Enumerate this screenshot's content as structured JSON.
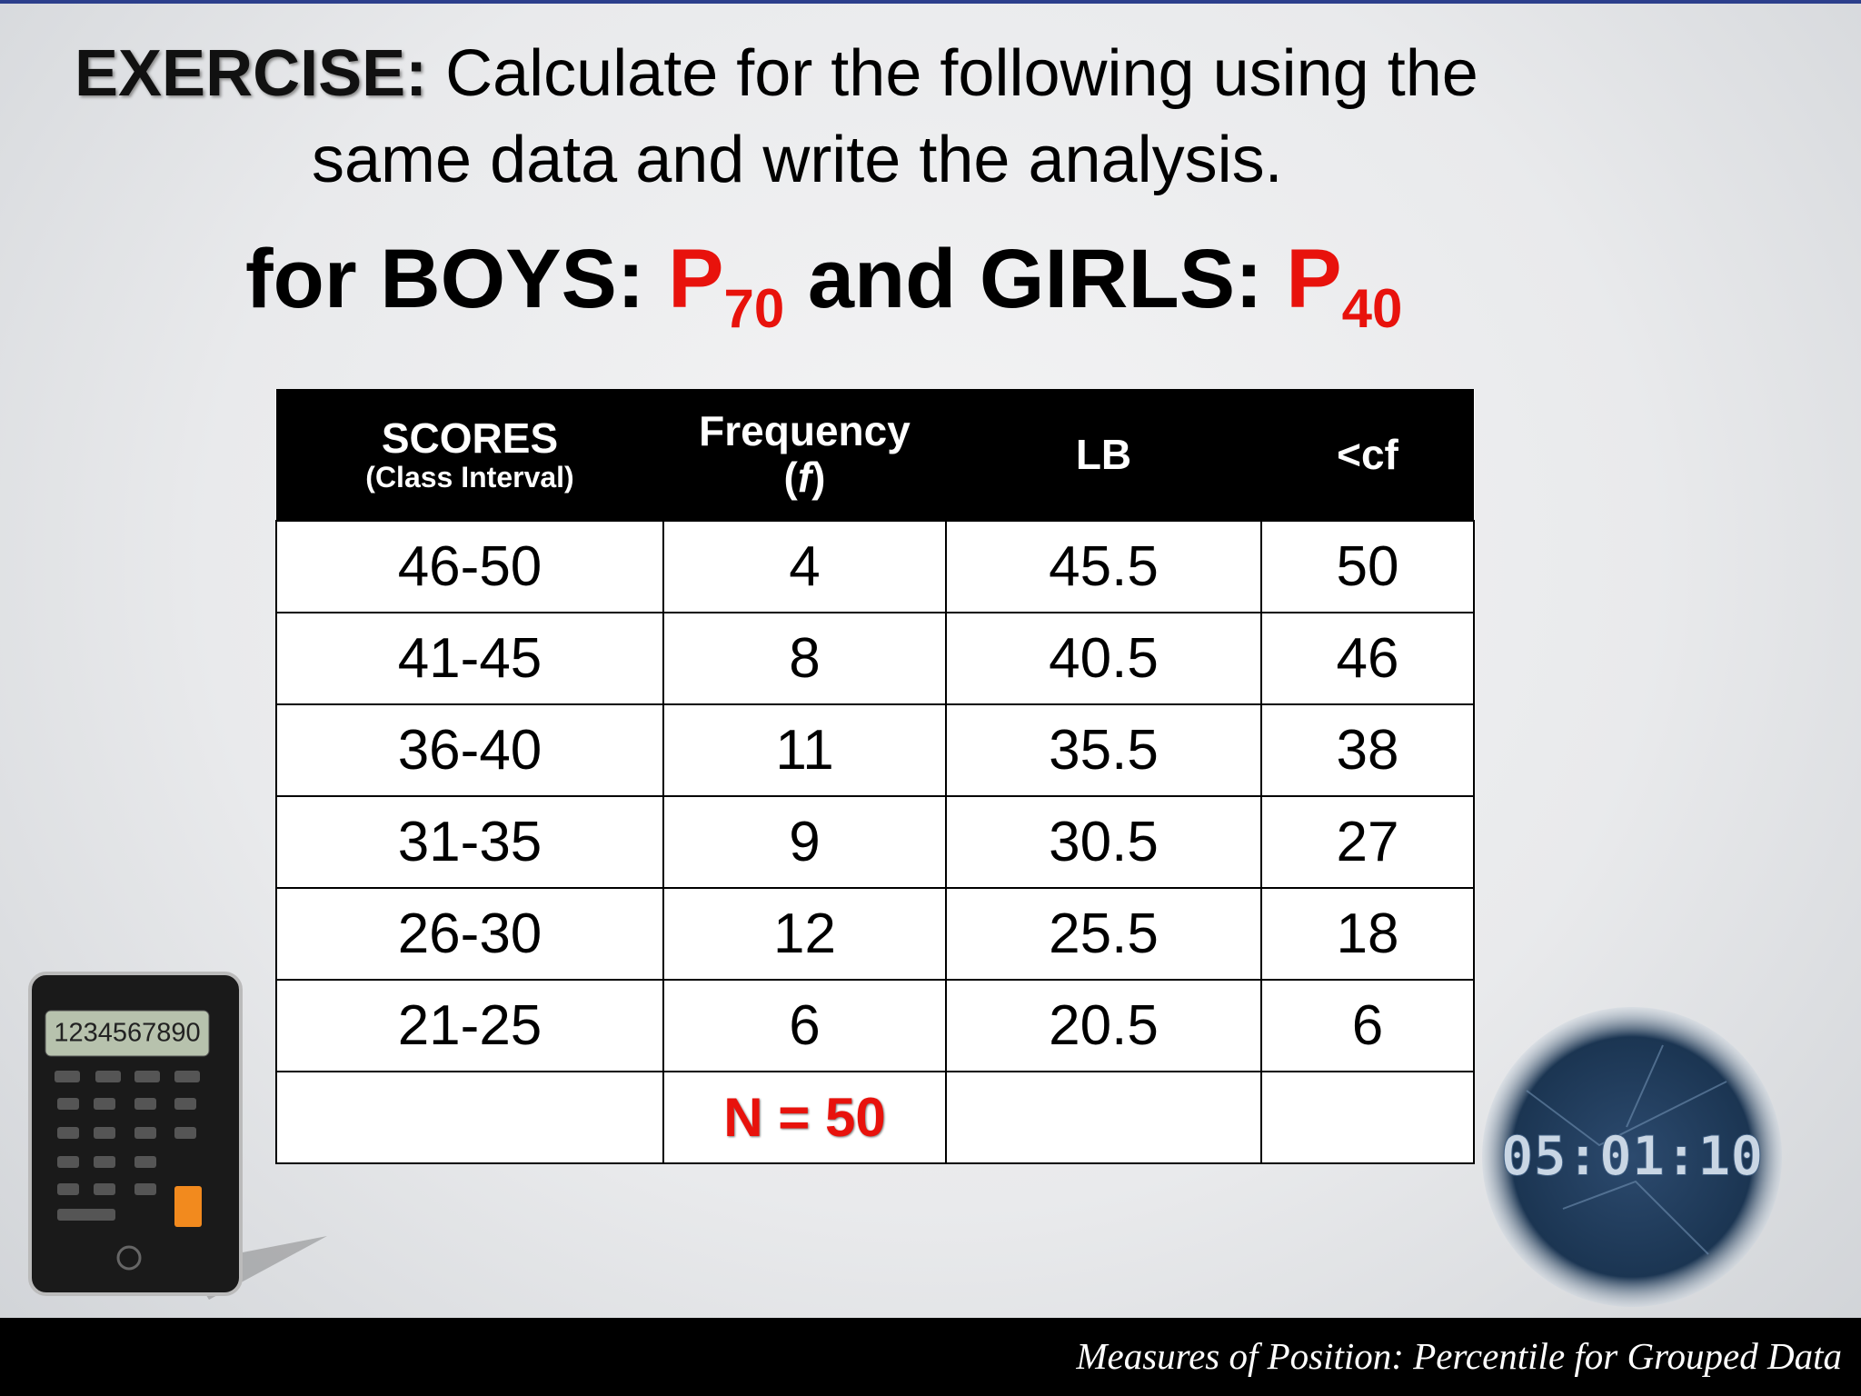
{
  "header": {
    "label": "EXERCISE:",
    "text_line1": "Calculate for the following using the",
    "text_line2": "same data and write the analysis."
  },
  "task": {
    "boys_label": "for BOYS:",
    "boys_symbol": "P",
    "boys_sub": "70",
    "girls_label": "and GIRLS:",
    "girls_symbol": "P",
    "girls_sub": "40"
  },
  "table": {
    "columns": [
      {
        "label": "SCORES",
        "sublabel": "(Class Interval)"
      },
      {
        "label": "Frequency",
        "sublabel_parts": [
          "(",
          "f",
          ")"
        ]
      },
      {
        "label": "LB"
      },
      {
        "label": "<cf"
      }
    ],
    "rows": [
      [
        "46-50",
        "4",
        "45.5",
        "50"
      ],
      [
        "41-45",
        "8",
        "40.5",
        "46"
      ],
      [
        "36-40",
        "11",
        "35.5",
        "38"
      ],
      [
        "31-35",
        "9",
        "30.5",
        "27"
      ],
      [
        "26-30",
        "12",
        "25.5",
        "18"
      ],
      [
        "21-25",
        "6",
        "20.5",
        "6"
      ]
    ],
    "total": "N = 50"
  },
  "calculator": {
    "display": "1234567890"
  },
  "timer": {
    "display": "05:01:10"
  },
  "footer": {
    "text": "Measures of Position: Percentile for Grouped Data"
  }
}
